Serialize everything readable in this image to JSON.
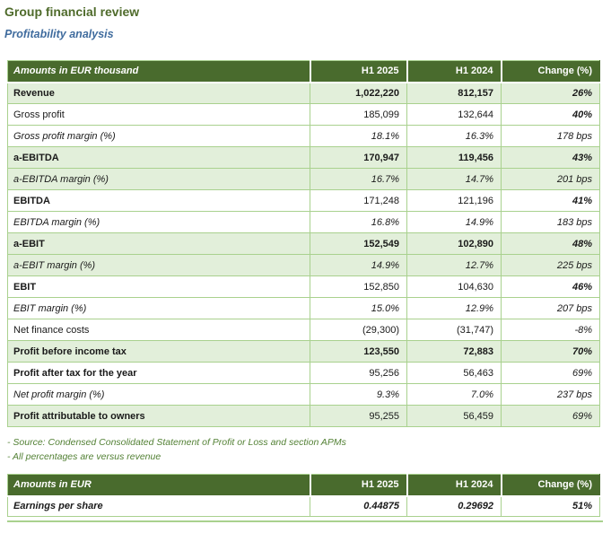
{
  "page": {
    "title": "Group financial review",
    "subtitle": "Profitability analysis"
  },
  "colors": {
    "header_bg": "#496B2D",
    "row_green": "#E2EFDA",
    "border_green": "#A9D18E",
    "title_green": "#4F6B2B",
    "subtitle_blue": "#406C9E",
    "footnote_green": "#538135",
    "text": "#1A1A1A"
  },
  "profitability_table": {
    "columns": [
      "Amounts in EUR thousand",
      "H1 2025",
      "H1 2024",
      "Change (%)"
    ],
    "rows": [
      {
        "label": "Revenue",
        "h1_2025": "1,022,220",
        "h1_2024": "812,157",
        "change": "26%",
        "bg": "green",
        "label_style": "bold",
        "value_style": "bold",
        "change_style": "bold-italic"
      },
      {
        "label": "Gross profit",
        "h1_2025": "185,099",
        "h1_2024": "132,644",
        "change": "40%",
        "bg": "white",
        "label_style": "regular",
        "value_style": "regular",
        "change_style": "bold-italic"
      },
      {
        "label": "Gross profit margin (%)",
        "h1_2025": "18.1%",
        "h1_2024": "16.3%",
        "change": "178 bps",
        "bg": "white",
        "label_style": "italic",
        "value_style": "italic",
        "change_style": "italic"
      },
      {
        "label": "a-EBITDA",
        "h1_2025": "170,947",
        "h1_2024": "119,456",
        "change": "43%",
        "bg": "green",
        "label_style": "bold",
        "value_style": "bold",
        "change_style": "bold-italic"
      },
      {
        "label": "a-EBITDA margin (%)",
        "h1_2025": "16.7%",
        "h1_2024": "14.7%",
        "change": "201 bps",
        "bg": "green",
        "label_style": "italic",
        "value_style": "italic",
        "change_style": "italic"
      },
      {
        "label": "EBITDA",
        "h1_2025": "171,248",
        "h1_2024": "121,196",
        "change": "41%",
        "bg": "white",
        "label_style": "bold",
        "value_style": "regular",
        "change_style": "bold-italic"
      },
      {
        "label": "EBITDA margin (%)",
        "h1_2025": "16.8%",
        "h1_2024": "14.9%",
        "change": "183 bps",
        "bg": "white",
        "label_style": "italic",
        "value_style": "italic",
        "change_style": "italic"
      },
      {
        "label": "a-EBIT",
        "h1_2025": "152,549",
        "h1_2024": "102,890",
        "change": "48%",
        "bg": "green",
        "label_style": "bold",
        "value_style": "bold",
        "change_style": "bold-italic"
      },
      {
        "label": "a-EBIT margin (%)",
        "h1_2025": "14.9%",
        "h1_2024": "12.7%",
        "change": "225 bps",
        "bg": "green",
        "label_style": "italic",
        "value_style": "italic",
        "change_style": "italic"
      },
      {
        "label": "EBIT",
        "h1_2025": "152,850",
        "h1_2024": "104,630",
        "change": "46%",
        "bg": "white",
        "label_style": "bold",
        "value_style": "regular",
        "change_style": "bold-italic"
      },
      {
        "label": "EBIT margin (%)",
        "h1_2025": "15.0%",
        "h1_2024": "12.9%",
        "change": "207 bps",
        "bg": "white",
        "label_style": "italic",
        "value_style": "italic",
        "change_style": "italic"
      },
      {
        "label": "Net finance costs",
        "h1_2025": "(29,300)",
        "h1_2024": "(31,747)",
        "change": "-8%",
        "bg": "white",
        "label_style": "regular",
        "value_style": "regular",
        "change_style": "italic"
      },
      {
        "label": "Profit before income tax",
        "h1_2025": "123,550",
        "h1_2024": "72,883",
        "change": "70%",
        "bg": "green",
        "label_style": "bold",
        "value_style": "bold",
        "change_style": "bold-italic"
      },
      {
        "label": "Profit after tax for the year",
        "h1_2025": "95,256",
        "h1_2024": "56,463",
        "change": "69%",
        "bg": "white",
        "label_style": "bold",
        "value_style": "regular",
        "change_style": "italic"
      },
      {
        "label": "Net profit margin (%)",
        "h1_2025": "9.3%",
        "h1_2024": "7.0%",
        "change": "237 bps",
        "bg": "white",
        "label_style": "italic",
        "value_style": "italic",
        "change_style": "italic"
      },
      {
        "label": "Profit attributable to owners",
        "h1_2025": "95,255",
        "h1_2024": "56,459",
        "change": "69%",
        "bg": "green",
        "label_style": "bold",
        "value_style": "regular",
        "change_style": "italic"
      }
    ]
  },
  "footnotes": [
    "-  Source: Condensed Consolidated Statement of Profit or Loss and section APMs",
    "-  All percentages are versus revenue"
  ],
  "eps_table": {
    "columns": [
      "Amounts in EUR",
      "H1 2025",
      "H1 2024",
      "Change (%)"
    ],
    "rows": [
      {
        "label": "Earnings per share",
        "h1_2025": "0.44875",
        "h1_2024": "0.29692",
        "change": "51%",
        "bg": "white",
        "label_style": "bold-italic",
        "value_style": "bold-italic",
        "change_style": "bold-italic"
      }
    ]
  }
}
